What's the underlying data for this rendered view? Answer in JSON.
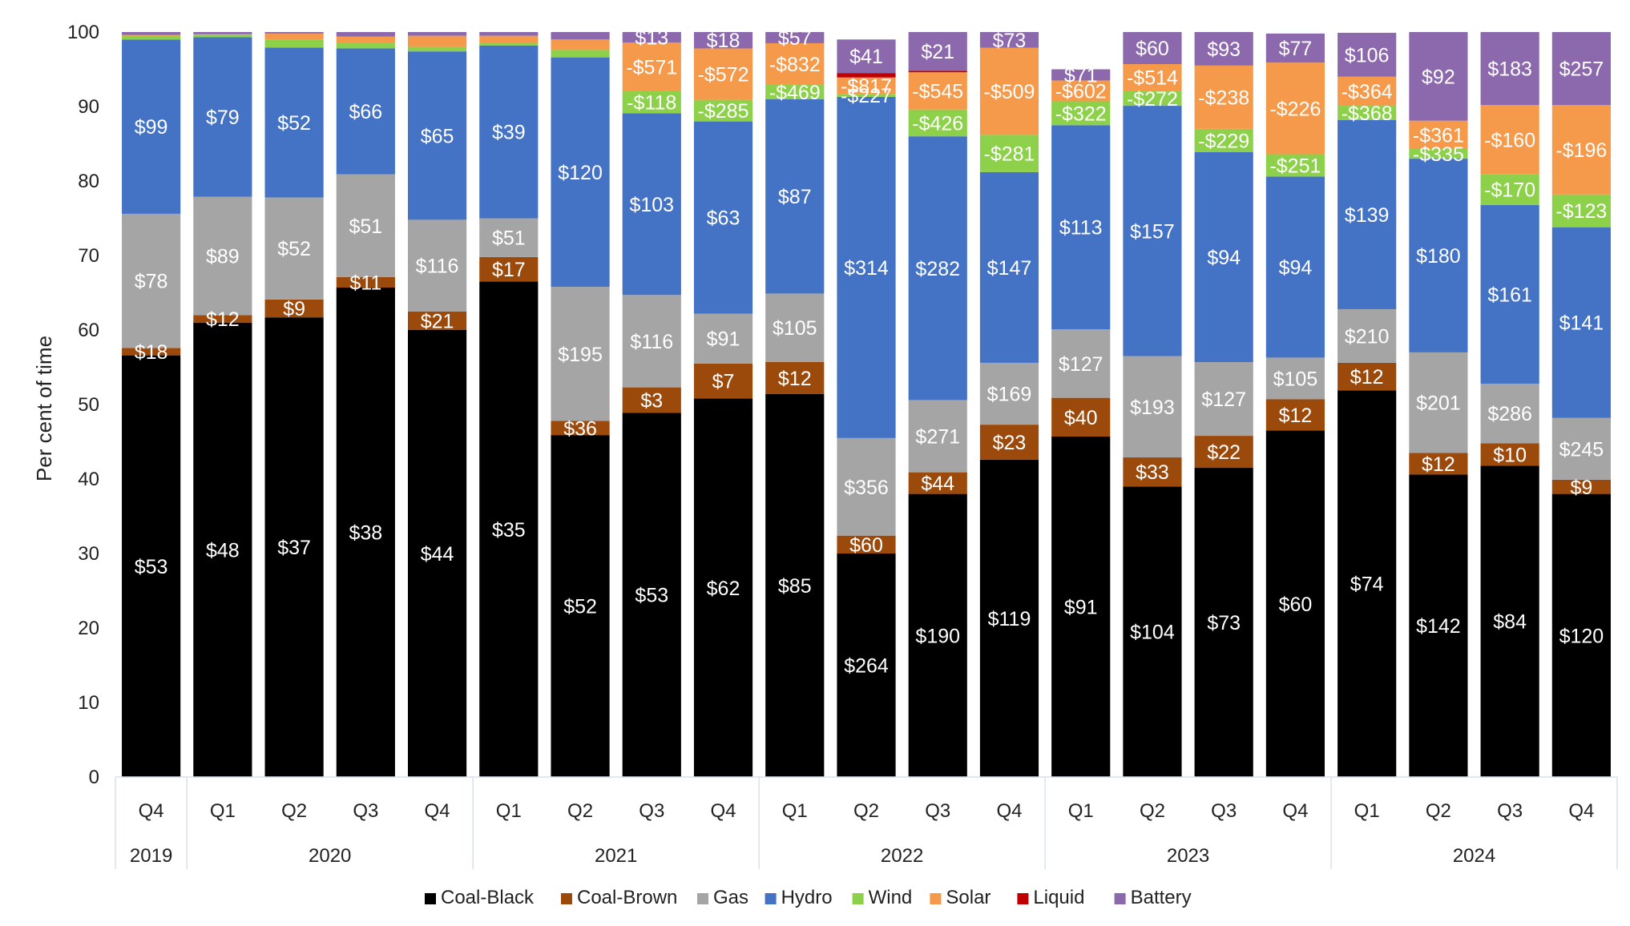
{
  "chart_data": {
    "type": "bar",
    "stacked": true,
    "ylabel": "Per cent of time",
    "ylim": [
      0,
      100
    ],
    "yticks": [
      0,
      10,
      20,
      30,
      40,
      50,
      60,
      70,
      80,
      90,
      100
    ],
    "grid": false,
    "legend_position": "bottom",
    "year_groups": [
      {
        "label": "2019",
        "count": 1
      },
      {
        "label": "2020",
        "count": 4
      },
      {
        "label": "2021",
        "count": 4
      },
      {
        "label": "2022",
        "count": 4
      },
      {
        "label": "2023",
        "count": 4
      },
      {
        "label": "2024",
        "count": 4
      }
    ],
    "categories": [
      "Q4",
      "Q1",
      "Q2",
      "Q3",
      "Q4",
      "Q1",
      "Q2",
      "Q3",
      "Q4",
      "Q1",
      "Q2",
      "Q3",
      "Q4",
      "Q1",
      "Q2",
      "Q3",
      "Q4",
      "Q1",
      "Q2",
      "Q3",
      "Q4"
    ],
    "series": [
      {
        "name": "Coal-Black",
        "color": "#000000",
        "values": [
          56.6,
          61.0,
          61.7,
          65.7,
          60.0,
          66.5,
          45.9,
          48.9,
          50.8,
          51.4,
          30.0,
          38.0,
          42.6,
          45.7,
          39.0,
          41.5,
          46.5,
          51.9,
          40.6,
          41.8,
          38.0
        ],
        "labels": [
          "$53",
          "$48",
          "$37",
          "$38",
          "$44",
          "$35",
          "$52",
          "$53",
          "$62",
          "$85",
          "$264",
          "$190",
          "$119",
          "$91",
          "$104",
          "$73",
          "$60",
          "$74",
          "$142",
          "$84",
          "$120"
        ]
      },
      {
        "name": "Coal-Brown",
        "color": "#9c4a0c",
        "values": [
          1.0,
          1.0,
          2.4,
          1.4,
          2.5,
          3.3,
          1.9,
          3.4,
          4.7,
          4.3,
          2.4,
          2.9,
          4.7,
          5.2,
          3.9,
          4.3,
          4.2,
          3.7,
          2.9,
          3.0,
          1.9
        ],
        "labels": [
          "$18",
          "$12",
          "$9",
          "$11",
          "$21",
          "$17",
          "$36",
          "$3",
          "$7",
          "$12",
          "$60",
          "$44",
          "$23",
          "$40",
          "$33",
          "$22",
          "$12",
          "$12",
          "$12",
          "$10",
          "$9"
        ]
      },
      {
        "name": "Gas",
        "color": "#a5a5a5",
        "values": [
          18.0,
          15.9,
          13.7,
          13.8,
          12.3,
          5.2,
          18.0,
          12.4,
          6.7,
          9.2,
          13.1,
          9.7,
          8.3,
          9.2,
          13.6,
          9.9,
          5.6,
          7.2,
          13.5,
          8.0,
          8.3
        ],
        "labels": [
          "$78",
          "$89",
          "$52",
          "$51",
          "$116",
          "$51",
          "$195",
          "$116",
          "$91",
          "$105",
          "$356",
          "$271",
          "$169",
          "$127",
          "$193",
          "$127",
          "$105",
          "$210",
          "$201",
          "$286",
          "$245"
        ]
      },
      {
        "name": "Hydro",
        "color": "#4472c4",
        "values": [
          23.4,
          21.4,
          20.1,
          16.9,
          22.6,
          23.2,
          30.8,
          24.4,
          25.8,
          26.1,
          45.8,
          35.4,
          25.6,
          27.4,
          33.6,
          28.2,
          24.3,
          25.4,
          26.0,
          24.0,
          25.6
        ],
        "labels": [
          "$99",
          "$79",
          "$52",
          "$66",
          "$65",
          "$39",
          "$120",
          "$103",
          "$63",
          "$87",
          "$314",
          "$282",
          "$147",
          "$113",
          "$157",
          "$94",
          "$94",
          "$139",
          "$180",
          "$161",
          "$141"
        ]
      },
      {
        "name": "Wind",
        "color": "#8dd14b",
        "values": [
          0.5,
          0.3,
          1.1,
          0.7,
          0.6,
          0.4,
          1.0,
          3.0,
          2.9,
          1.9,
          0.4,
          3.6,
          5.0,
          3.2,
          2.0,
          3.1,
          3.0,
          1.9,
          1.3,
          4.1,
          4.4
        ],
        "labels": [
          "",
          "",
          "",
          "",
          "",
          "",
          "",
          "-$118",
          "-$285",
          "-$469",
          "-$227",
          "-$426",
          "-$281",
          "-$322",
          "-$272",
          "-$229",
          "-$251",
          "-$368",
          "-$335",
          "-$170",
          "-$123"
        ]
      },
      {
        "name": "Solar",
        "color": "#f59a4a",
        "values": [
          0.1,
          0.1,
          0.8,
          0.9,
          1.5,
          0.9,
          1.4,
          6.5,
          6.9,
          5.6,
          2.2,
          5.0,
          11.7,
          2.8,
          3.6,
          8.5,
          12.3,
          3.9,
          3.8,
          9.3,
          12.0
        ],
        "labels": [
          "",
          "",
          "",
          "",
          "",
          "",
          "",
          "-$571",
          "-$572",
          "-$832",
          "-$817",
          "-$545",
          "-$509",
          "-$602",
          "-$514",
          "-$238",
          "-$226",
          "-$364",
          "-$361",
          "-$160",
          "-$196"
        ]
      },
      {
        "name": "Liquid",
        "color": "#c00000",
        "values": [
          0,
          0,
          0,
          0,
          0,
          0,
          0,
          0,
          0,
          0,
          0.6,
          0.2,
          0,
          0,
          0,
          0,
          0,
          0,
          0,
          0,
          0
        ],
        "labels": [
          "",
          "",
          "",
          "",
          "",
          "",
          "",
          "",
          "",
          "",
          "",
          "",
          "",
          "",
          "",
          "",
          "",
          "",
          "",
          "",
          ""
        ]
      },
      {
        "name": "Battery",
        "color": "#8c68ac",
        "values": [
          0.4,
          0.3,
          0.2,
          0.6,
          0.5,
          0.5,
          1.0,
          1.4,
          2.2,
          1.5,
          4.5,
          5.2,
          2.1,
          1.5,
          4.3,
          4.5,
          3.9,
          5.9,
          11.9,
          9.8,
          9.8
        ],
        "labels": [
          "",
          "",
          "",
          "",
          "",
          "",
          "",
          "$13",
          "$18",
          "$57",
          "$41",
          "$21",
          "$73",
          "$71",
          "$60",
          "$93",
          "$77",
          "$106",
          "$92",
          "$183",
          "$257"
        ]
      }
    ]
  }
}
